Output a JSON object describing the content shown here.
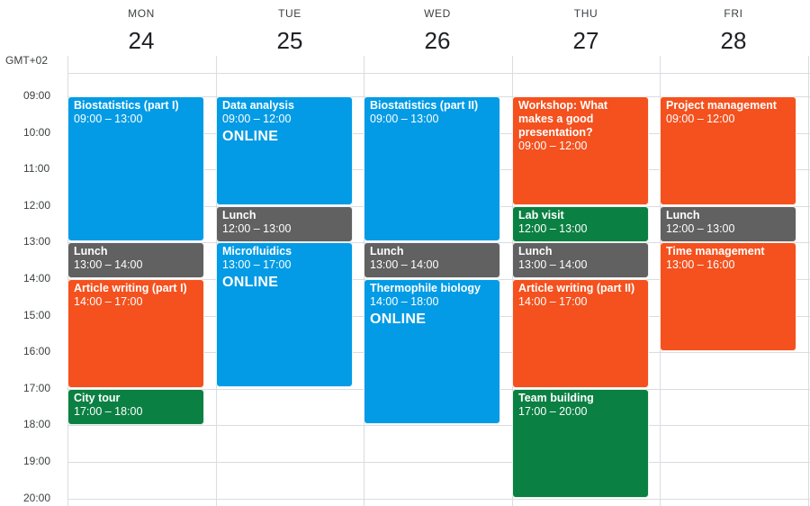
{
  "timezone_label": "GMT+02",
  "days": [
    {
      "name": "MON",
      "date": "24"
    },
    {
      "name": "TUE",
      "date": "25"
    },
    {
      "name": "WED",
      "date": "26"
    },
    {
      "name": "THU",
      "date": "27"
    },
    {
      "name": "FRI",
      "date": "28"
    }
  ],
  "hours": [
    "09:00",
    "10:00",
    "11:00",
    "12:00",
    "13:00",
    "14:00",
    "15:00",
    "16:00",
    "17:00",
    "18:00",
    "19:00",
    "20:00"
  ],
  "colors": {
    "blue": "#039be5",
    "orange": "#f4511e",
    "gray": "#616161",
    "green": "#0b8043"
  },
  "events": [
    {
      "day": 0,
      "start": 9,
      "end": 13,
      "title": "Biostatistics (part I)",
      "time": "09:00 – 13:00",
      "color": "blue"
    },
    {
      "day": 0,
      "start": 13,
      "end": 14,
      "title": "Lunch",
      "time": "13:00 – 14:00",
      "color": "gray"
    },
    {
      "day": 0,
      "start": 14,
      "end": 17,
      "title": "Article writing (part I)",
      "time": "14:00 – 17:00",
      "color": "orange"
    },
    {
      "day": 0,
      "start": 17,
      "end": 18,
      "title": "City tour",
      "time": "17:00 – 18:00",
      "color": "green"
    },
    {
      "day": 1,
      "start": 9,
      "end": 12,
      "title": "Data analysis",
      "time": "09:00 – 12:00",
      "extra": "ONLINE",
      "color": "blue"
    },
    {
      "day": 1,
      "start": 12,
      "end": 13,
      "title": "Lunch",
      "time": "12:00 – 13:00",
      "color": "gray"
    },
    {
      "day": 1,
      "start": 13,
      "end": 17,
      "title": "Microfluidics",
      "time": "13:00 – 17:00",
      "extra": "ONLINE",
      "color": "blue"
    },
    {
      "day": 2,
      "start": 9,
      "end": 13,
      "title": "Biostatistics (part II)",
      "time": "09:00 – 13:00",
      "color": "blue"
    },
    {
      "day": 2,
      "start": 13,
      "end": 14,
      "title": "Lunch",
      "time": "13:00 – 14:00",
      "color": "gray"
    },
    {
      "day": 2,
      "start": 14,
      "end": 18,
      "title": "Thermophile biology",
      "time": "14:00 – 18:00",
      "extra": "ONLINE",
      "color": "blue"
    },
    {
      "day": 3,
      "start": 9,
      "end": 12,
      "title": "Workshop: What makes a good presentation?",
      "time": "09:00 – 12:00",
      "color": "orange"
    },
    {
      "day": 3,
      "start": 12,
      "end": 13,
      "title": "Lab visit",
      "time": "12:00 – 13:00",
      "color": "green"
    },
    {
      "day": 3,
      "start": 13,
      "end": 14,
      "title": "Lunch",
      "time": "13:00 – 14:00",
      "color": "gray"
    },
    {
      "day": 3,
      "start": 14,
      "end": 17,
      "title": "Article writing (part II)",
      "time": "14:00 – 17:00",
      "color": "orange"
    },
    {
      "day": 3,
      "start": 17,
      "end": 20,
      "title": "Team building",
      "time": "17:00 – 20:00",
      "color": "green"
    },
    {
      "day": 4,
      "start": 9,
      "end": 12,
      "title": "Project management",
      "time": "09:00 – 12:00",
      "color": "orange"
    },
    {
      "day": 4,
      "start": 12,
      "end": 13,
      "title": "Lunch",
      "time": "12:00 – 13:00",
      "color": "gray"
    },
    {
      "day": 4,
      "start": 13,
      "end": 16,
      "title": "Time management",
      "time": "13:00 – 16:00",
      "color": "orange"
    }
  ]
}
